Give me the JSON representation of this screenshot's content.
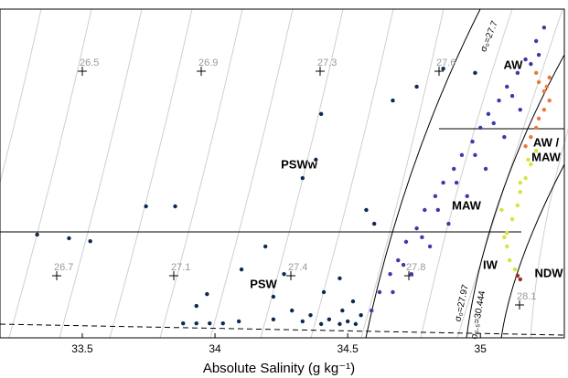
{
  "chart_data": {
    "type": "scatter",
    "xlabel": "Absolute Salinity (g kg⁻¹)",
    "xlim": [
      33.19,
      35.33
    ],
    "xticks": [
      33.5,
      34,
      34.5,
      35
    ],
    "ylim": [
      -2,
      8
    ],
    "isopycnal_labels": [
      "26.5",
      "26.9",
      "27.3",
      "27.6",
      "26.7",
      "27.1",
      "27.4",
      "27.8",
      "28.1"
    ],
    "water_masses": [
      "AW",
      "AW /",
      "MAW",
      "MAW",
      "PSWw",
      "PSW",
      "IW",
      "NDW"
    ],
    "curve_labels": [
      "σ₀=27.7",
      "σ₀=27.97",
      "σ₀.₅=30.444"
    ],
    "series": [
      {
        "color": "#0d2a4f",
        "x": [
          33.33,
          33.45,
          33.53,
          33.74,
          33.85,
          33.93,
          33.97,
          33.88,
          33.93,
          33.98,
          34.03,
          34.09,
          34.19,
          34.1,
          34.22,
          34.26,
          34.33,
          34.38,
          34.4,
          34.67,
          34.76,
          34.86,
          34.98,
          34.22,
          34.29,
          34.33,
          34.36,
          34.4,
          34.43,
          34.47,
          34.5,
          34.53,
          34.48,
          34.55,
          34.41,
          34.47,
          34.52,
          34.6,
          34.57
        ],
        "values": [
          1.14,
          1.03,
          0.94,
          2.0,
          2.0,
          -1.03,
          -0.67,
          -1.56,
          -1.56,
          -1.56,
          -1.56,
          -1.5,
          0.78,
          0.08,
          -0.75,
          -0.06,
          2.86,
          3.42,
          4.81,
          5.22,
          5.64,
          6.19,
          6.06,
          -1.44,
          -1.17,
          -1.5,
          -1.31,
          -1.58,
          -1.44,
          -1.58,
          -1.5,
          -1.58,
          -1.17,
          -1.31,
          -0.61,
          -0.19,
          -0.89,
          1.47,
          1.89
        ]
      },
      {
        "color": "#3d3aa6",
        "x": [
          34.59,
          34.62,
          34.66,
          34.69,
          34.72,
          34.76,
          34.79,
          34.83,
          34.86,
          34.9,
          34.93,
          34.97,
          35.0,
          35.03,
          35.07,
          35.1,
          35.14,
          35.17,
          35.21,
          35.24,
          34.71,
          34.78,
          34.84,
          34.91,
          34.98,
          35.05,
          35.12,
          35.19,
          34.67,
          34.74,
          34.81,
          34.88,
          34.95,
          35.02,
          35.09,
          35.15,
          35.22
        ],
        "values": [
          -1.17,
          -0.61,
          -0.06,
          0.36,
          0.92,
          1.33,
          1.89,
          2.31,
          2.72,
          3.14,
          3.56,
          3.97,
          4.39,
          4.81,
          5.22,
          5.64,
          6.06,
          6.47,
          7.03,
          7.44,
          0.22,
          1.06,
          1.89,
          2.72,
          3.56,
          4.53,
          5.36,
          6.33,
          -0.61,
          -0.06,
          0.78,
          1.47,
          2.31,
          3.14,
          4.11,
          4.94,
          6.61
        ]
      },
      {
        "color": "#ea7a3a",
        "x": [
          35.22,
          35.24,
          35.26,
          35.24,
          35.22,
          35.21,
          35.19,
          35.17,
          35.21,
          35.25,
          35.26
        ],
        "values": [
          5.78,
          5.5,
          5.22,
          4.94,
          4.67,
          4.39,
          4.11,
          3.83,
          6.06,
          5.64,
          5.92
        ]
      },
      {
        "color": "#d9e23e",
        "x": [
          35.21,
          35.19,
          35.17,
          35.15,
          35.14,
          35.12,
          35.1,
          35.1,
          35.11,
          35.13,
          35.18,
          35.15,
          35.09,
          35.08
        ],
        "values": [
          3.69,
          3.28,
          2.86,
          2.44,
          2.03,
          1.61,
          1.19,
          0.78,
          0.36,
          0.08,
          3.42,
          2.72,
          1.06,
          1.89
        ]
      },
      {
        "color": "#9b2a1a",
        "x": [
          35.14,
          35.15
        ],
        "values": [
          -0.11,
          -0.22
        ]
      }
    ]
  }
}
